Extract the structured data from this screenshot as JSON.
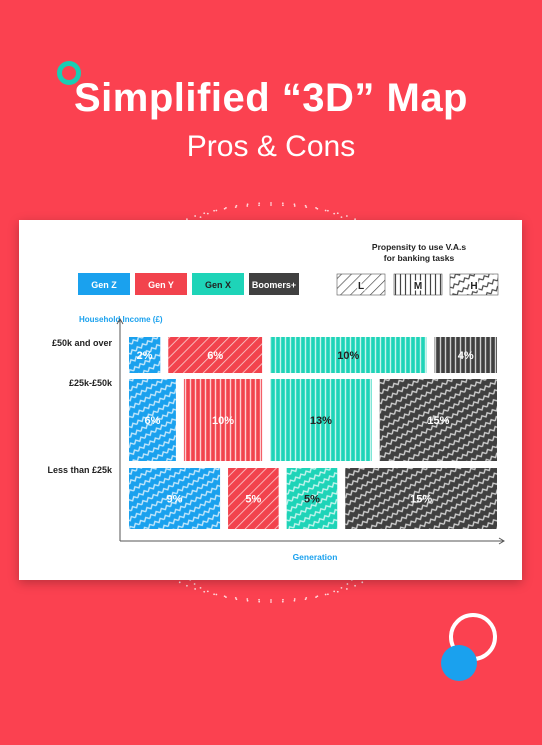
{
  "header": {
    "title": "Simplified “3D” Map",
    "subtitle": "Pros & Cons"
  },
  "colors": {
    "background": "#fb4150",
    "gen_z": "#1aa1ee",
    "gen_y": "#f2434d",
    "gen_x": "#1ed4b8",
    "boomers": "#404040",
    "teal_accent": "#19cdb3"
  },
  "chart_data": {
    "type": "marimekko",
    "xlabel": "Generation",
    "ylabel": "Household Income (£)",
    "income_bands": [
      "£50k and over",
      "£25k-£50k",
      "Less than £25k"
    ],
    "generations": [
      {
        "name": "Gen Z",
        "color": "#1aa1ee"
      },
      {
        "name": "Gen Y",
        "color": "#f2434d"
      },
      {
        "name": "Gen X",
        "color": "#1ed4b8"
      },
      {
        "name": "Boomers+",
        "color": "#404040"
      }
    ],
    "propensity_legend": {
      "title_line1": "Propensity to use V.A.s",
      "title_line2": "for banking tasks",
      "levels": [
        {
          "label": "L",
          "pattern": "diagonal"
        },
        {
          "label": "M",
          "pattern": "vertical"
        },
        {
          "label": "H",
          "pattern": "wave"
        }
      ]
    },
    "cells": [
      {
        "band": "£50k and over",
        "generation": "Gen Z",
        "value": 2,
        "label": "2%",
        "propensity": "H"
      },
      {
        "band": "£50k and over",
        "generation": "Gen Y",
        "value": 6,
        "label": "6%",
        "propensity": "L"
      },
      {
        "band": "£50k and over",
        "generation": "Gen X",
        "value": 10,
        "label": "10%",
        "propensity": "M"
      },
      {
        "band": "£50k and over",
        "generation": "Boomers+",
        "value": 4,
        "label": "4%",
        "propensity": "M"
      },
      {
        "band": "£25k-£50k",
        "generation": "Gen Z",
        "value": 6,
        "label": "6%",
        "propensity": "H"
      },
      {
        "band": "£25k-£50k",
        "generation": "Gen Y",
        "value": 10,
        "label": "10%",
        "propensity": "M"
      },
      {
        "band": "£25k-£50k",
        "generation": "Gen X",
        "value": 13,
        "label": "13%",
        "propensity": "M"
      },
      {
        "band": "£25k-£50k",
        "generation": "Boomers+",
        "value": 15,
        "label": "15%",
        "propensity": "H"
      },
      {
        "band": "Less than £25k",
        "generation": "Gen Z",
        "value": 9,
        "label": "9%",
        "propensity": "H"
      },
      {
        "band": "Less than £25k",
        "generation": "Gen Y",
        "value": 5,
        "label": "5%",
        "propensity": "L"
      },
      {
        "band": "Less than £25k",
        "generation": "Gen X",
        "value": 5,
        "label": "5%",
        "propensity": "H"
      },
      {
        "band": "Less than £25k",
        "generation": "Boomers+",
        "value": 15,
        "label": "15%",
        "propensity": "H"
      }
    ]
  }
}
